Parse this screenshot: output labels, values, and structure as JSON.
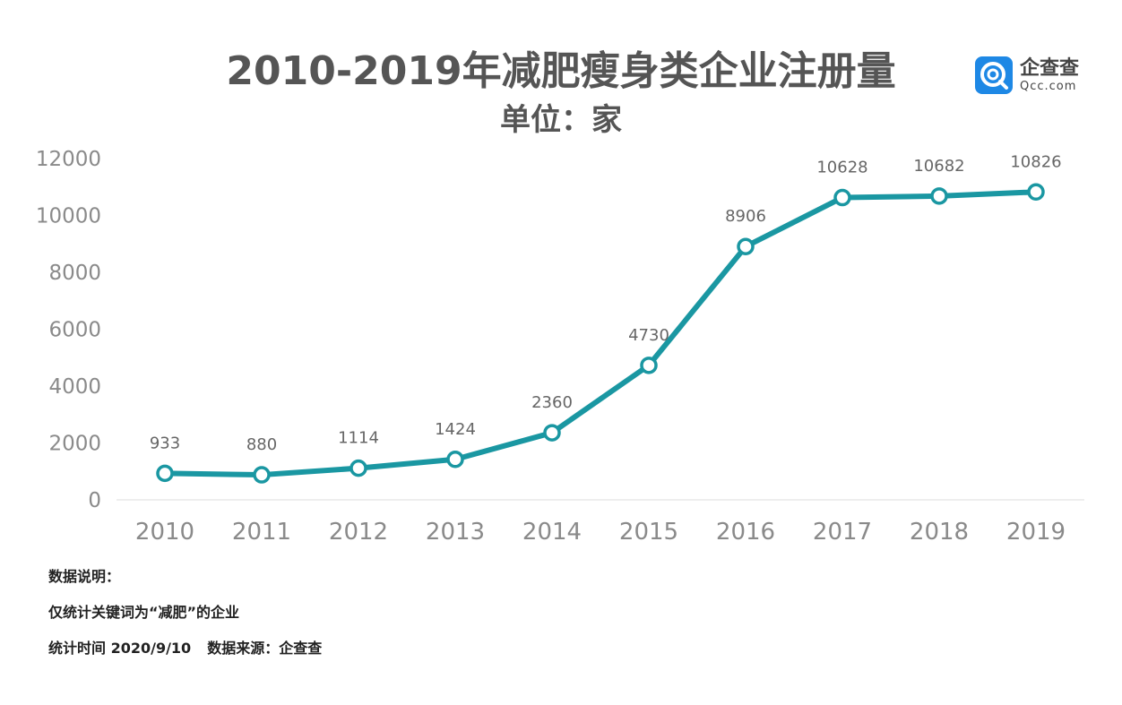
{
  "header": {
    "title": "2010-2019年减肥瘦身类企业注册量",
    "subtitle": "单位：家",
    "logo": {
      "cn": "企查查",
      "en": "Qcc.com",
      "icon": "qcc-logo-icon"
    }
  },
  "notes": {
    "heading": "数据说明：",
    "line1": "仅统计关键词为“减肥”的企业",
    "time": "统计时间 2020/9/10",
    "source": "数据来源：企查查"
  },
  "chart_data": {
    "type": "line",
    "title": "2010-2019年减肥瘦身类企业注册量",
    "subtitle": "单位：家",
    "categories": [
      "2010",
      "2011",
      "2012",
      "2013",
      "2014",
      "2015",
      "2016",
      "2017",
      "2018",
      "2019"
    ],
    "values": [
      933,
      880,
      1114,
      1424,
      2360,
      4730,
      8906,
      10628,
      10682,
      10826
    ],
    "yticks": [
      0,
      2000,
      4000,
      6000,
      8000,
      10000,
      12000
    ],
    "ylim": [
      0,
      12000
    ],
    "grid": false,
    "legend": "none",
    "colors": {
      "line": "#1a97a2",
      "marker_fill": "#ffffff",
      "axis_text": "#8a8a8a",
      "label_text": "#666666",
      "axis_line": "#dddddd"
    }
  }
}
